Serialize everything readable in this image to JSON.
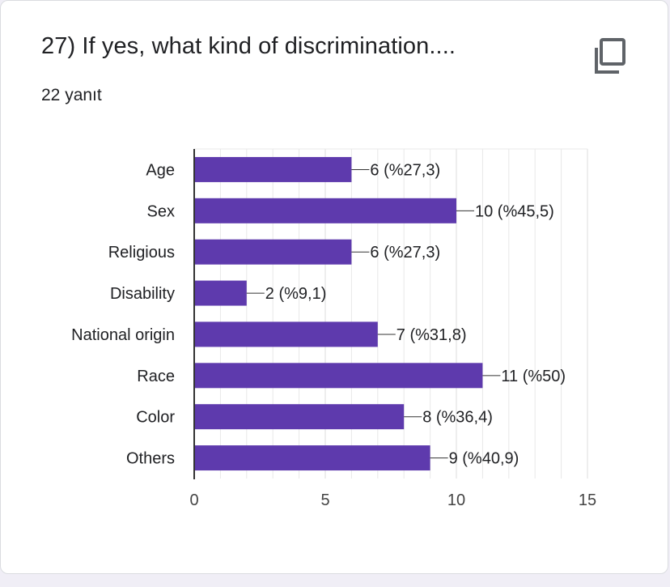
{
  "question": {
    "title": "27) If yes, what kind of discrimination....",
    "response_count": "22 yanıt"
  },
  "icons": {
    "copy": "copy-icon"
  },
  "colors": {
    "bar": "#5e3aad",
    "axis": "#333333",
    "grid": "#e8e8e8",
    "text": "#202124"
  },
  "chart_data": {
    "type": "bar",
    "orientation": "horizontal",
    "categories": [
      "Age",
      "Sex",
      "Religious",
      "Disability",
      "National origin",
      "Race",
      "Color",
      "Others"
    ],
    "values": [
      6,
      10,
      6,
      2,
      7,
      11,
      8,
      9
    ],
    "data_labels": [
      "6 (%27,3)",
      "10 (%45,5)",
      "6 (%27,3)",
      "2 (%9,1)",
      "7 (%31,8)",
      "11 (%50)",
      "8 (%36,4)",
      "9 (%40,9)"
    ],
    "xlim": [
      0,
      15
    ],
    "xticks": [
      0,
      5,
      10,
      15
    ],
    "grid": true,
    "title": "27) If yes, what kind of discrimination....",
    "xlabel": "",
    "ylabel": ""
  }
}
